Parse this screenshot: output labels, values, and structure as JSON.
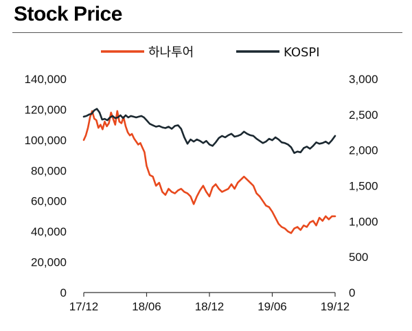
{
  "page": {
    "title": "Stock Price"
  },
  "chart_data": {
    "type": "line",
    "legend_position": "top",
    "grid": false,
    "x_tick_labels": [
      "17/12",
      "18/06",
      "18/12",
      "19/06",
      "19/12"
    ],
    "y_left": {
      "range": [
        0,
        140000
      ],
      "ticks": [
        "0",
        "20,000",
        "40,000",
        "60,000",
        "80,000",
        "100,000",
        "120,000",
        "140,000"
      ]
    },
    "y_right": {
      "range": [
        0,
        3000
      ],
      "ticks": [
        "0",
        "500",
        "1,000",
        "1,500",
        "2,000",
        "2,500",
        "3,000"
      ]
    },
    "series": [
      {
        "name": "하나투어",
        "axis": "left",
        "color": "#e8491d",
        "x": [
          0,
          0.2,
          0.4,
          0.6,
          0.8,
          1,
          1.2,
          1.4,
          1.6,
          1.8,
          2,
          2.2,
          2.4,
          2.6,
          2.8,
          3,
          3.2,
          3.4,
          3.6,
          3.8,
          4,
          4.2,
          4.4,
          4.6,
          4.8,
          5,
          5.2,
          5.4,
          5.6,
          5.8,
          6,
          6.3,
          6.6,
          6.9,
          7.2,
          7.5,
          7.8,
          8.1,
          8.4,
          8.7,
          9,
          9.3,
          9.6,
          9.9,
          10.2,
          10.5,
          10.8,
          11.1,
          11.4,
          11.7,
          12,
          12.3,
          12.6,
          12.9,
          13.2,
          13.5,
          13.8,
          14.1,
          14.4,
          14.7,
          15,
          15.3,
          15.6,
          15.9,
          16.2,
          16.5,
          16.8,
          17.1,
          17.4,
          17.7,
          18,
          18.3,
          18.6,
          18.9,
          19.2,
          19.5,
          19.8,
          20.1,
          20.4,
          20.7,
          21,
          21.3,
          21.6,
          21.9,
          22.2,
          22.5,
          22.8,
          23.1,
          23.4,
          23.7,
          24
        ],
        "y": [
          100000,
          103000,
          108000,
          115000,
          119000,
          114000,
          113000,
          108000,
          110000,
          107000,
          112000,
          109000,
          111000,
          118000,
          114000,
          110000,
          119000,
          112000,
          111000,
          115000,
          109000,
          105000,
          103000,
          104000,
          101000,
          99000,
          97000,
          98000,
          95000,
          92000,
          83000,
          77000,
          76000,
          70000,
          72000,
          66000,
          64000,
          68000,
          66000,
          65000,
          67000,
          68000,
          66000,
          65000,
          63000,
          58000,
          63000,
          67000,
          70000,
          66000,
          63000,
          69000,
          71000,
          68000,
          66000,
          67000,
          68000,
          71000,
          68000,
          72000,
          74000,
          76000,
          74000,
          72000,
          70000,
          65000,
          63000,
          60000,
          57000,
          56000,
          53000,
          49000,
          45000,
          43000,
          42000,
          40000,
          39000,
          42000,
          43000,
          41000,
          44000,
          43000,
          46000,
          47000,
          44000,
          49000,
          47000,
          50000,
          48000,
          50000,
          50000
        ]
      },
      {
        "name": "KOSPI",
        "axis": "right",
        "color": "#1b2830",
        "x": [
          0,
          0.25,
          0.5,
          0.75,
          1,
          1.25,
          1.5,
          1.75,
          2,
          2.25,
          2.5,
          2.75,
          3,
          3.25,
          3.5,
          3.75,
          4,
          4.25,
          4.5,
          4.75,
          5,
          5.25,
          5.5,
          5.75,
          6,
          6.3,
          6.6,
          6.9,
          7.2,
          7.5,
          7.8,
          8.1,
          8.4,
          8.7,
          9,
          9.3,
          9.6,
          9.9,
          10.2,
          10.5,
          10.8,
          11.1,
          11.4,
          11.7,
          12,
          12.3,
          12.6,
          12.9,
          13.2,
          13.5,
          13.8,
          14.1,
          14.4,
          14.7,
          15,
          15.3,
          15.6,
          15.9,
          16.2,
          16.5,
          16.8,
          17.1,
          17.4,
          17.7,
          18,
          18.3,
          18.6,
          18.9,
          19.2,
          19.5,
          19.8,
          20.1,
          20.4,
          20.7,
          21,
          21.3,
          21.6,
          21.9,
          22.2,
          22.5,
          22.8,
          23.1,
          23.4,
          23.7,
          24
        ],
        "y": [
          2470,
          2480,
          2500,
          2510,
          2560,
          2580,
          2530,
          2430,
          2440,
          2420,
          2460,
          2480,
          2450,
          2460,
          2490,
          2450,
          2490,
          2460,
          2480,
          2470,
          2460,
          2470,
          2480,
          2460,
          2420,
          2370,
          2350,
          2330,
          2340,
          2320,
          2310,
          2330,
          2300,
          2340,
          2350,
          2300,
          2180,
          2090,
          2150,
          2120,
          2150,
          2130,
          2100,
          2130,
          2080,
          2060,
          2110,
          2170,
          2200,
          2180,
          2210,
          2230,
          2190,
          2200,
          2220,
          2260,
          2230,
          2210,
          2200,
          2160,
          2130,
          2100,
          2120,
          2160,
          2140,
          2180,
          2150,
          2110,
          2100,
          2080,
          2040,
          1960,
          1980,
          1970,
          2030,
          2050,
          2020,
          2060,
          2110,
          2090,
          2100,
          2120,
          2090,
          2140,
          2200
        ]
      }
    ]
  }
}
